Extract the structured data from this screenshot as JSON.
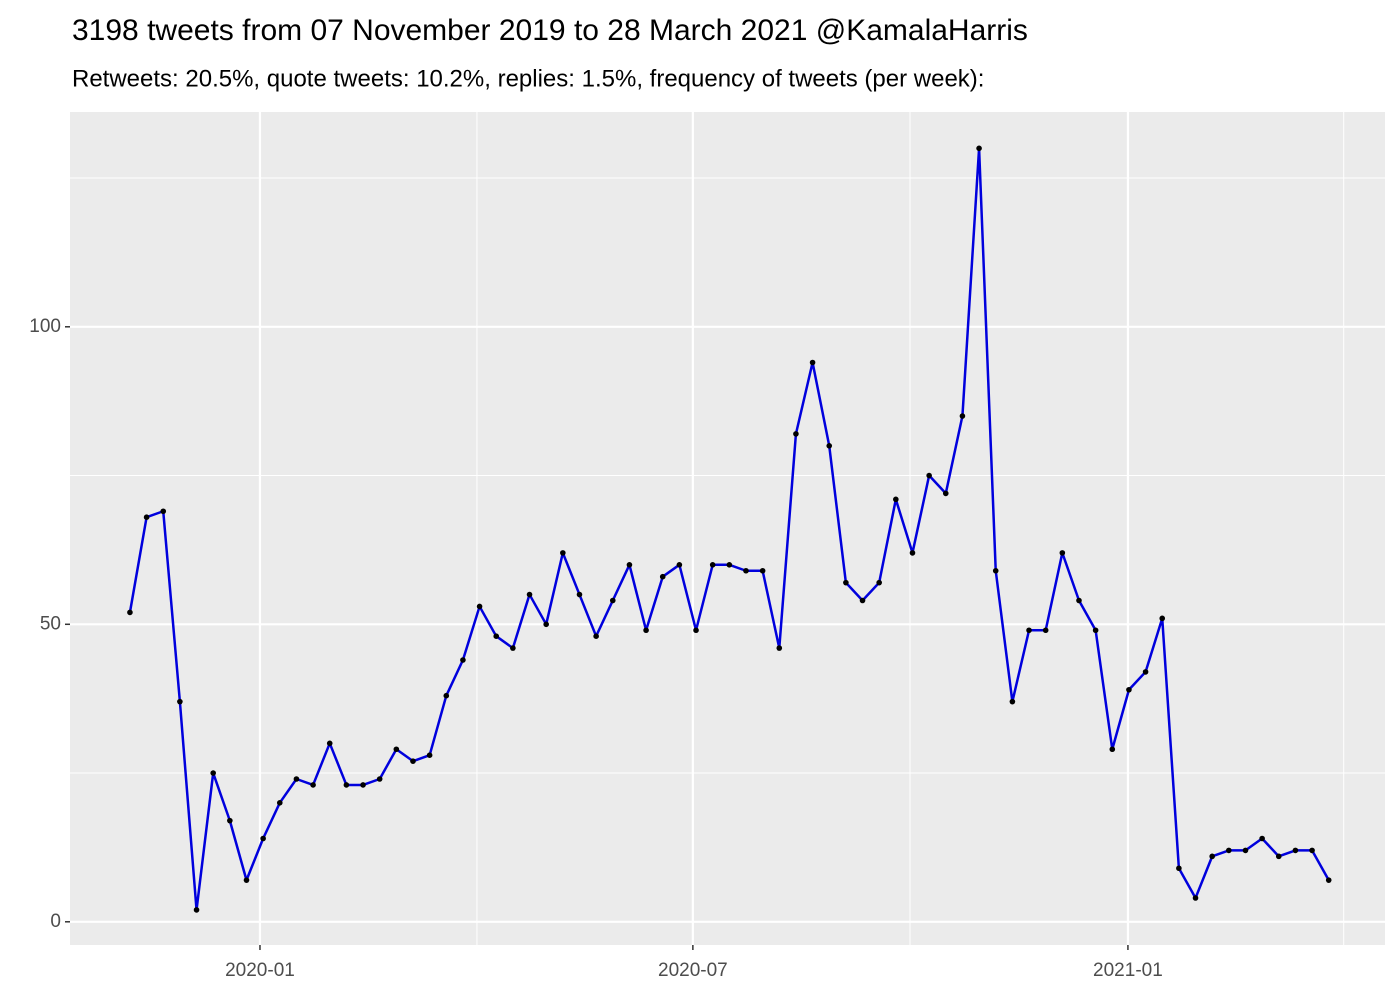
{
  "chart_data": {
    "type": "line",
    "title": "3198 tweets from 07 November 2019 to 28 March 2021 @KamalaHarris",
    "subtitle": "Retweets: 20.5%, quote tweets: 10.2%, replies: 1.5%, frequency of tweets (per week):",
    "categories": [
      null,
      null,
      null,
      null,
      null,
      null,
      null,
      null,
      null,
      null,
      null,
      null,
      null,
      null,
      null,
      null,
      null,
      null,
      null,
      null,
      null,
      null,
      null,
      null,
      null,
      null,
      null,
      null,
      null,
      null,
      null,
      null,
      null,
      null,
      null,
      null,
      null,
      null,
      null,
      null,
      null,
      null,
      null,
      null,
      null,
      null,
      null,
      null,
      null,
      null,
      null,
      null,
      null,
      null,
      null,
      null,
      null,
      null,
      null,
      null,
      null,
      null,
      null,
      null,
      null,
      null,
      null,
      null,
      null,
      null,
      null,
      null,
      null
    ],
    "series": [
      {
        "color": "#0000dd",
        "point_color": "#000000",
        "values": [
          52,
          68,
          69,
          37,
          2,
          25,
          17,
          7,
          14,
          20,
          24,
          23,
          30,
          23,
          23,
          24,
          29,
          27,
          28,
          38,
          44,
          53,
          48,
          46,
          55,
          50,
          62,
          55,
          48,
          54,
          60,
          49,
          58,
          60,
          49,
          60,
          60,
          59,
          59,
          46,
          82,
          94,
          80,
          57,
          54,
          57,
          71,
          62,
          75,
          72,
          85,
          130,
          59,
          37,
          49,
          49,
          62,
          54,
          49,
          29,
          39,
          42,
          51,
          9,
          4,
          11,
          12,
          12,
          14,
          11,
          12,
          12,
          7
        ]
      }
    ],
    "xlim": [
      -3.6,
      75.38
    ],
    "xticks": [
      {
        "value": 7.81,
        "label": "2020-01"
      },
      {
        "value": 33.81,
        "label": "2020-07"
      },
      {
        "value": 59.94,
        "label": "2021-01"
      }
    ],
    "xminorticks": [
      20.84,
      46.85,
      72.9
    ],
    "ylim": [
      -3.9,
      136.1
    ],
    "yticks": [
      0,
      50,
      100
    ],
    "yminorticks": [
      25,
      75,
      125
    ],
    "grid": true
  }
}
